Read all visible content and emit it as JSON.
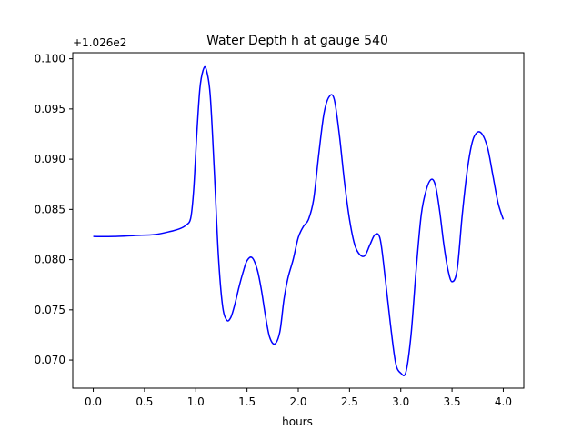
{
  "chart_data": {
    "type": "line",
    "title": "Water Depth h at gauge 540",
    "xlabel": "hours",
    "ylabel": "",
    "offset_label": "+1.026e2",
    "xlim": [
      -0.2,
      4.2
    ],
    "ylim": [
      0.0672,
      0.1006
    ],
    "grid": false,
    "xticks": [
      0.0,
      0.5,
      1.0,
      1.5,
      2.0,
      2.5,
      3.0,
      3.5,
      4.0
    ],
    "xtick_labels": [
      "0.0",
      "0.5",
      "1.0",
      "1.5",
      "2.0",
      "2.5",
      "3.0",
      "3.5",
      "4.0"
    ],
    "yticks": [
      0.07,
      0.075,
      0.08,
      0.085,
      0.09,
      0.095,
      0.1
    ],
    "ytick_labels": [
      "0.070",
      "0.075",
      "0.080",
      "0.085",
      "0.090",
      "0.095",
      "0.100"
    ],
    "series": [
      {
        "color": "#0000ff",
        "x": [
          0.0,
          0.2,
          0.4,
          0.6,
          0.75,
          0.85,
          0.9,
          0.95,
          0.98,
          1.01,
          1.04,
          1.07,
          1.1,
          1.14,
          1.18,
          1.22,
          1.26,
          1.3,
          1.34,
          1.38,
          1.42,
          1.46,
          1.5,
          1.55,
          1.6,
          1.64,
          1.68,
          1.72,
          1.77,
          1.82,
          1.86,
          1.9,
          1.95,
          2.0,
          2.05,
          2.1,
          2.15,
          2.2,
          2.25,
          2.3,
          2.35,
          2.4,
          2.45,
          2.5,
          2.55,
          2.6,
          2.65,
          2.7,
          2.75,
          2.8,
          2.85,
          2.9,
          2.95,
          3.0,
          3.05,
          3.1,
          3.15,
          3.2,
          3.25,
          3.3,
          3.34,
          3.38,
          3.42,
          3.46,
          3.5,
          3.55,
          3.6,
          3.65,
          3.7,
          3.75,
          3.8,
          3.85,
          3.9,
          3.95,
          4.0
        ],
        "y": [
          0.0823,
          0.0823,
          0.0824,
          0.0825,
          0.0828,
          0.0831,
          0.0834,
          0.0841,
          0.087,
          0.0925,
          0.097,
          0.0988,
          0.099,
          0.0965,
          0.089,
          0.0805,
          0.0755,
          0.074,
          0.0742,
          0.0755,
          0.0772,
          0.0787,
          0.0799,
          0.0802,
          0.079,
          0.077,
          0.0744,
          0.0723,
          0.0716,
          0.0728,
          0.076,
          0.0782,
          0.08,
          0.0822,
          0.0833,
          0.084,
          0.086,
          0.0905,
          0.0945,
          0.0962,
          0.096,
          0.0925,
          0.0878,
          0.084,
          0.0815,
          0.0805,
          0.0804,
          0.0815,
          0.0825,
          0.082,
          0.078,
          0.0735,
          0.0697,
          0.0687,
          0.0688,
          0.0725,
          0.079,
          0.0845,
          0.087,
          0.088,
          0.0873,
          0.0848,
          0.0815,
          0.079,
          0.0778,
          0.079,
          0.0845,
          0.089,
          0.0918,
          0.0927,
          0.0924,
          0.091,
          0.0883,
          0.0856,
          0.084
        ]
      }
    ]
  }
}
